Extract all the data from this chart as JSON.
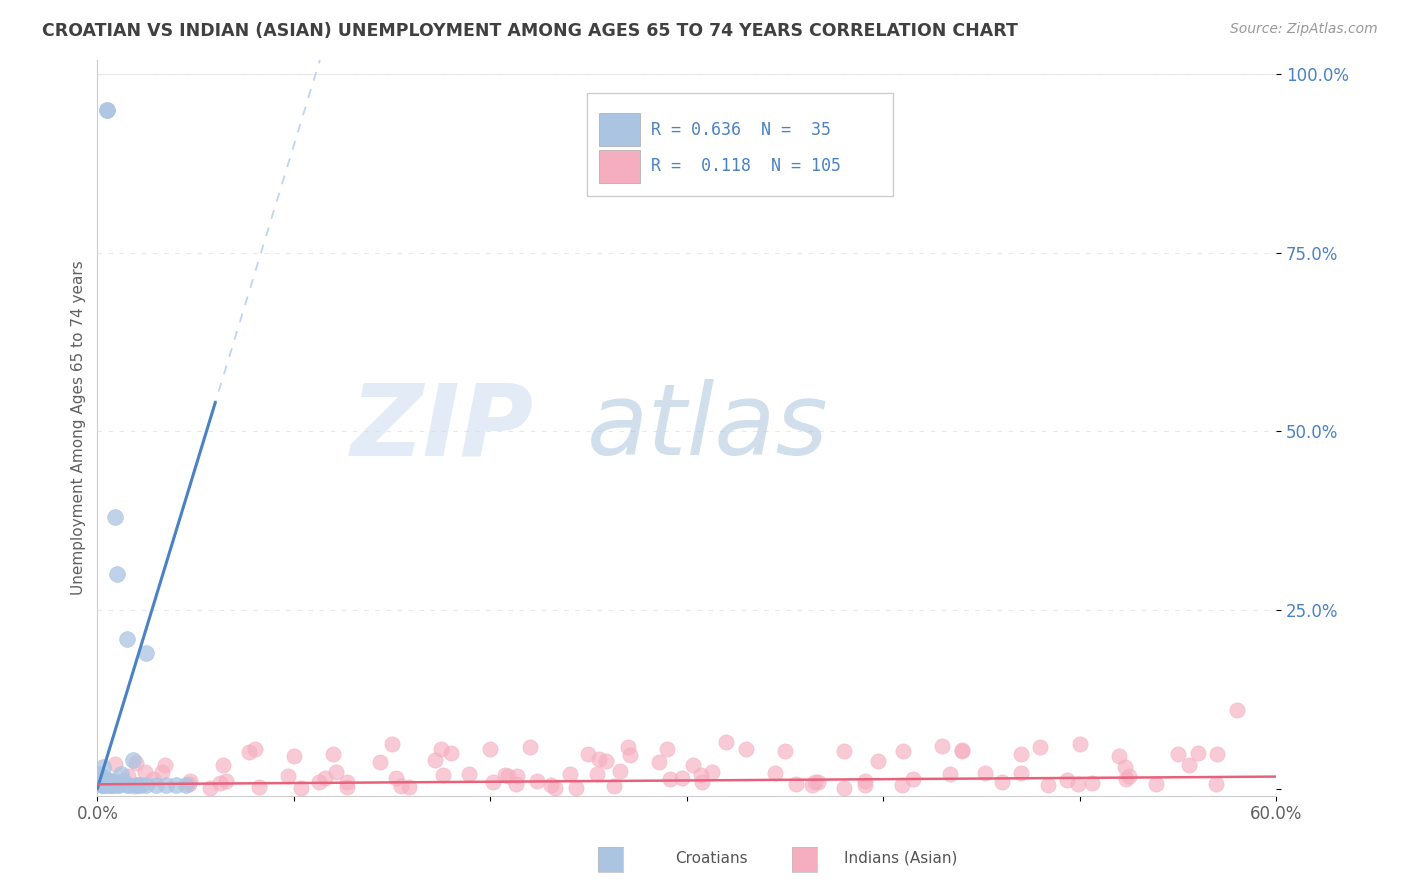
{
  "title": "CROATIAN VS INDIAN (ASIAN) UNEMPLOYMENT AMONG AGES 65 TO 74 YEARS CORRELATION CHART",
  "source": "Source: ZipAtlas.com",
  "ylabel": "Unemployment Among Ages 65 to 74 years",
  "xlim": [
    0.0,
    0.6
  ],
  "ylim": [
    -0.01,
    1.02
  ],
  "yticks": [
    0.0,
    0.25,
    0.5,
    0.75,
    1.0
  ],
  "ytick_labels": [
    "",
    "25.0%",
    "50.0%",
    "75.0%",
    "100.0%"
  ],
  "xtick_labels": [
    "0.0%",
    "",
    "",
    "",
    "",
    "",
    "60.0%"
  ],
  "croatian_R": 0.636,
  "croatian_N": 35,
  "indian_R": 0.118,
  "indian_N": 105,
  "croatian_color": "#aac4e2",
  "indian_color": "#f5aec0",
  "croatian_line_color": "#4a82c4",
  "indian_line_color": "#e8607a",
  "dashed_line_color": "#c0d4f0",
  "watermark_zip": "ZIP",
  "watermark_atlas": "atlas",
  "background_color": "#ffffff",
  "grid_color": "#e8e8e8",
  "title_color": "#404040",
  "label_color": "#606060",
  "legend_text_color": "#4a82c4",
  "right_label_color": "#4a82c4"
}
